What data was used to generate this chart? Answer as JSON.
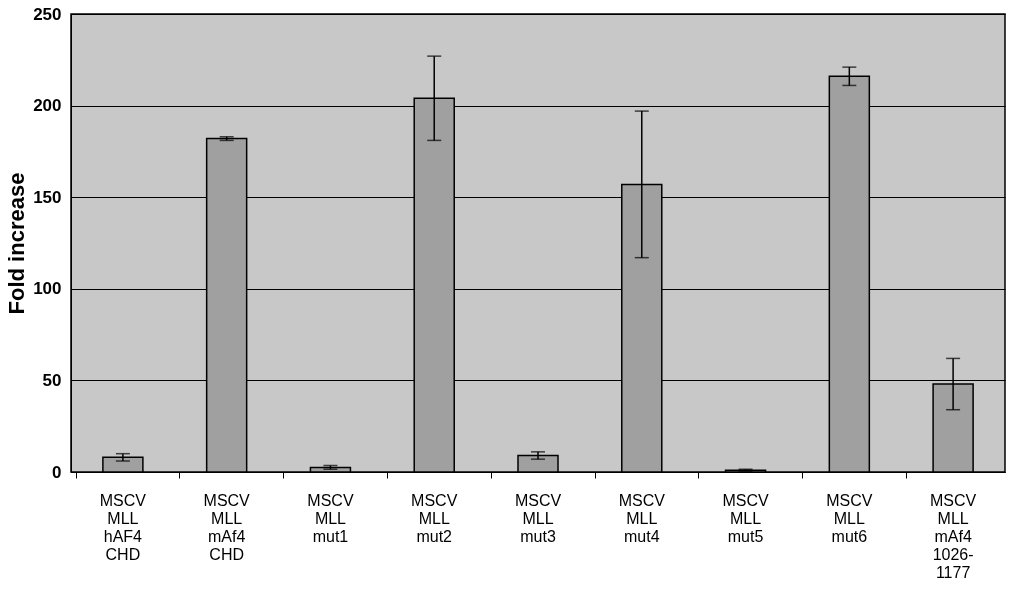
{
  "chart_data": {
    "type": "bar",
    "ylabel": "Fold increase",
    "categories": [
      "MSCV\nMLL\nhAF4\nCHD",
      "MSCV\nMLL\nmAf4\nCHD",
      "MSCV\nMLL\nmut1",
      "MSCV\nMLL\nmut2",
      "MSCV\nMLL\nmut3",
      "MSCV\nMLL\nmut4",
      "MSCV\nMLL\nmut5",
      "MSCV\nMLL\nmut6",
      "MSCV\nMLL\nmAf4\n1026-\n1177"
    ],
    "values": [
      8,
      182,
      2.5,
      204,
      9,
      157,
      1,
      216,
      48
    ],
    "errors": [
      2,
      1,
      1,
      23,
      2,
      40,
      0.5,
      5,
      14
    ],
    "color": "#a0a0a0",
    "ylim": [
      0,
      250
    ],
    "yticks": [
      0,
      50,
      100,
      150,
      200,
      250
    ],
    "grid": "y"
  }
}
